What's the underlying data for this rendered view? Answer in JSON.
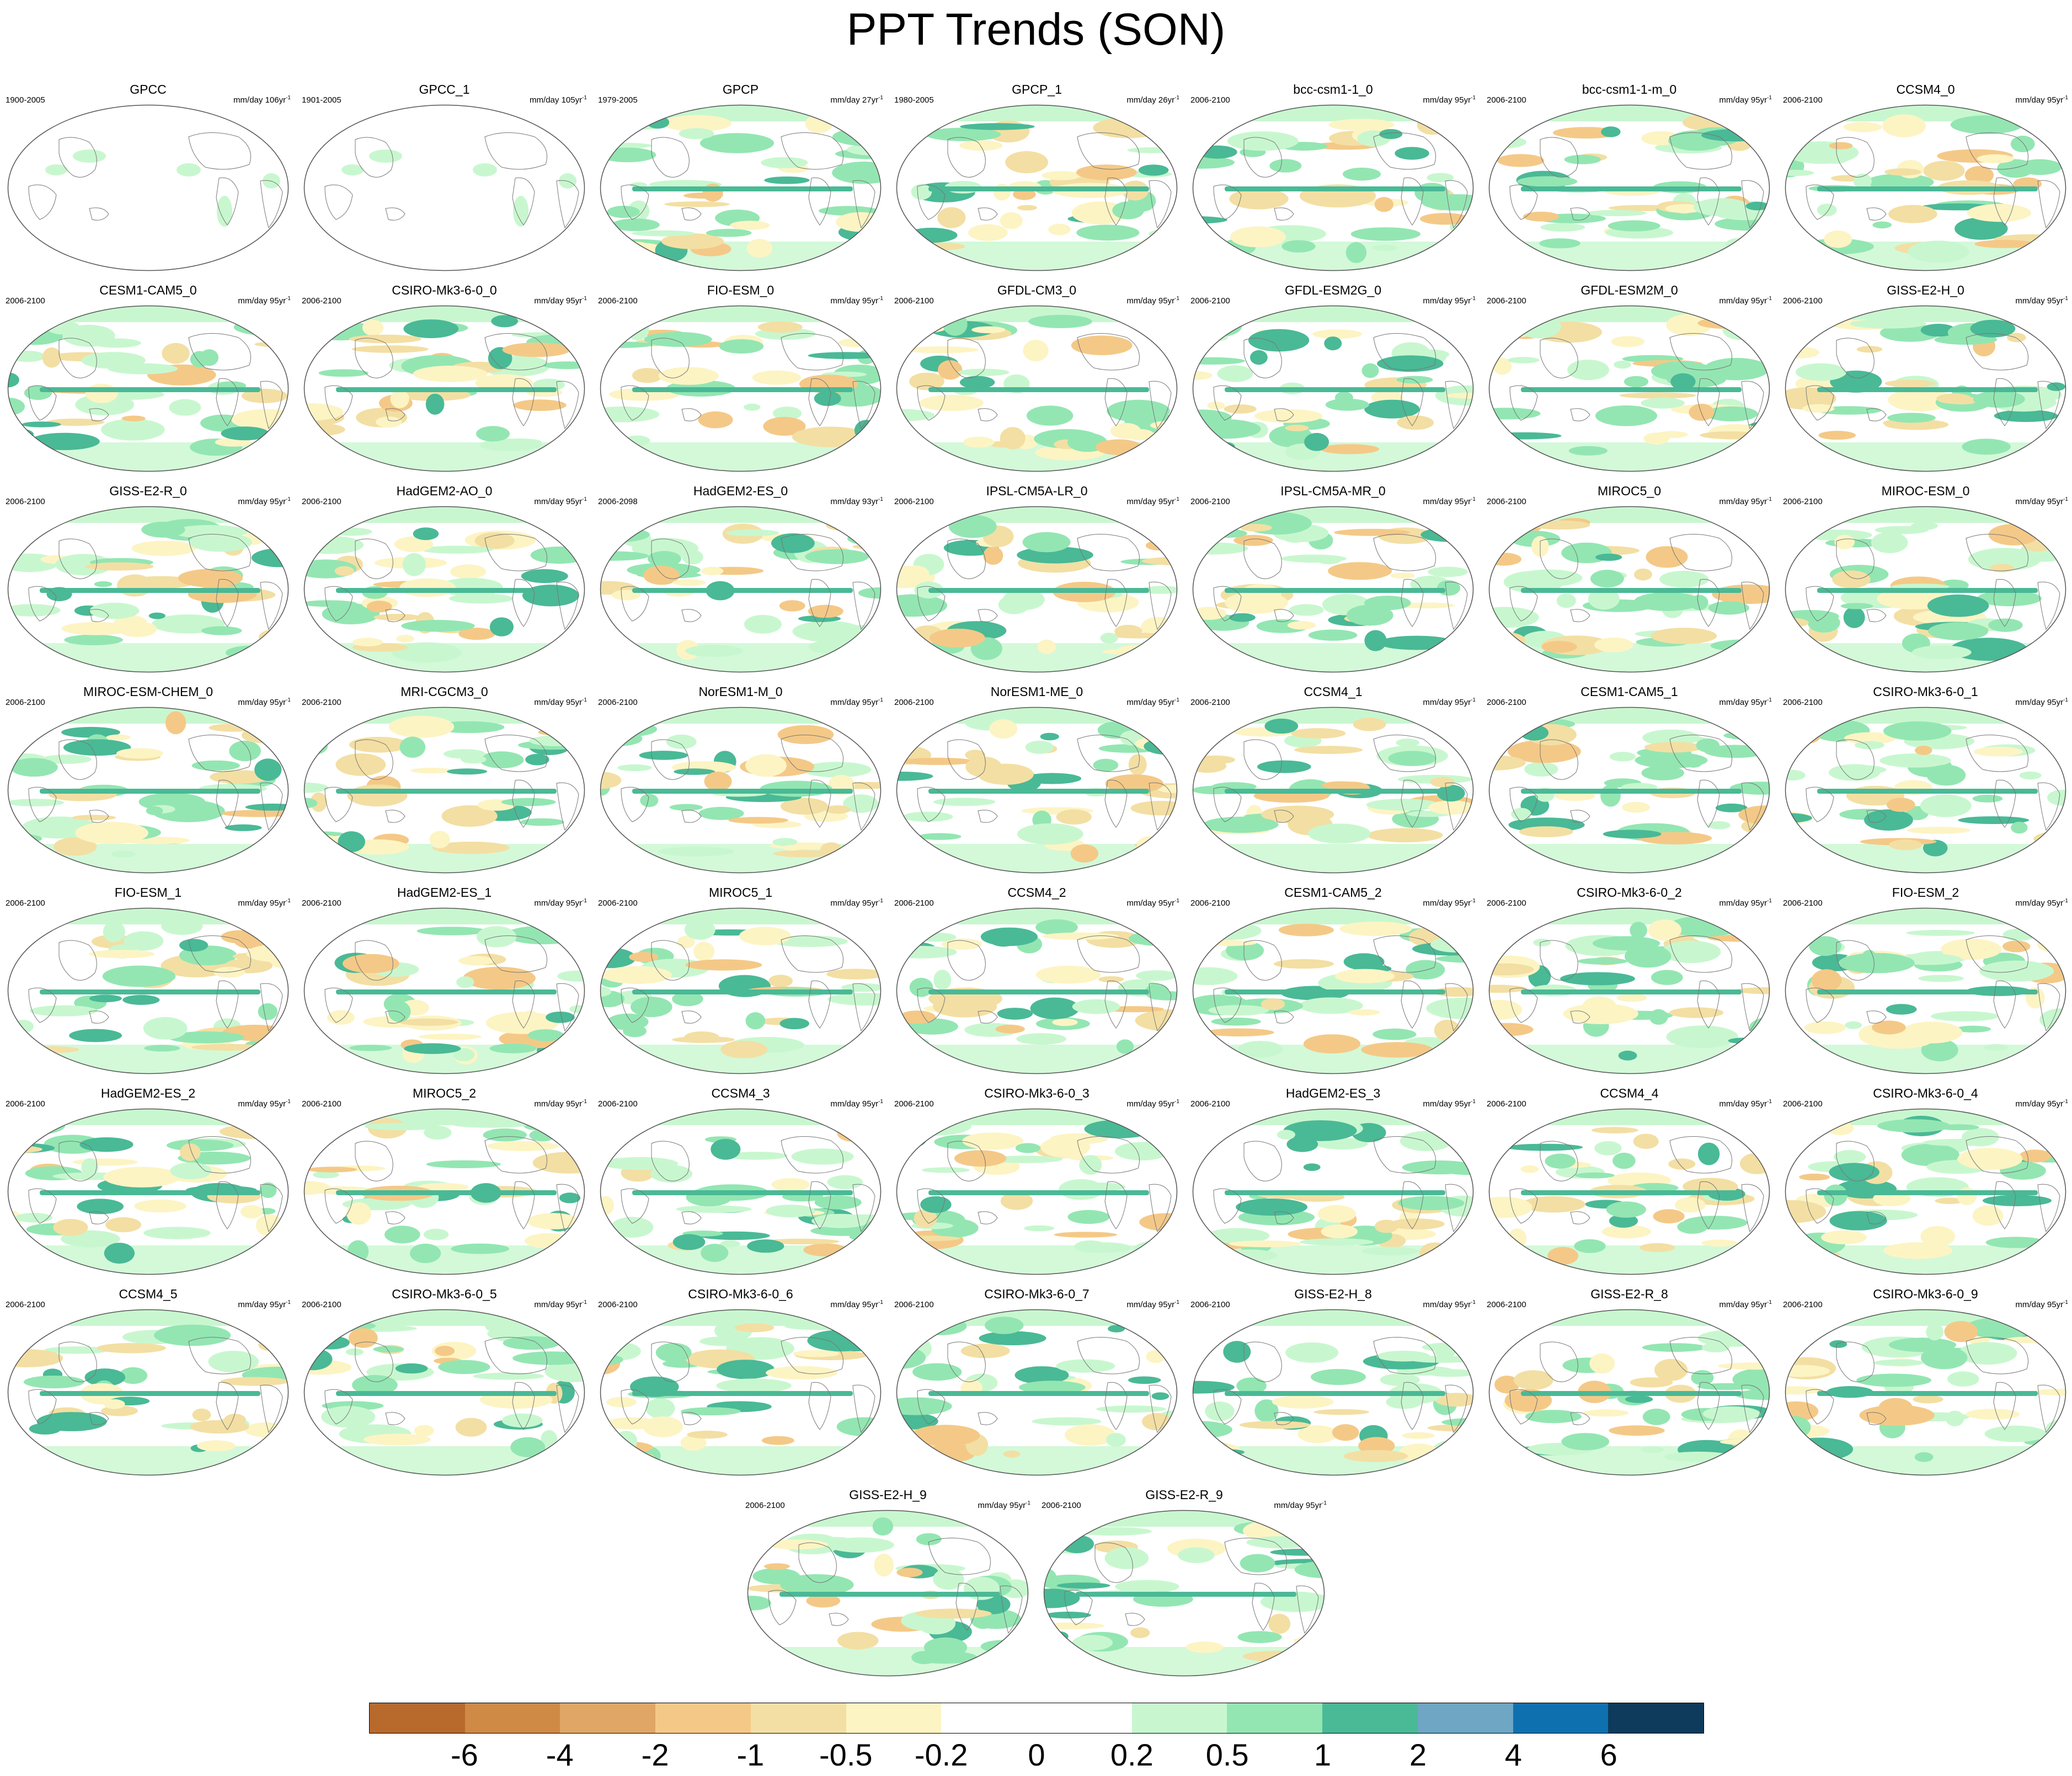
{
  "title": "PPT Trends (SON)",
  "units_prefix": "mm/day",
  "units_suffix": "yr",
  "units_exponent": "-1",
  "colorbar": {
    "colors": [
      "#b8692c",
      "#cf8a45",
      "#e0a665",
      "#f4c987",
      "#f3dfa3",
      "#fdf4c4",
      "#ffffff",
      "#ffffff",
      "#c8f7cf",
      "#93e6b2",
      "#4ab996",
      "#6ea6c4",
      "#0f70b0",
      "#0e3a5c"
    ],
    "labels": [
      "-6",
      "-4",
      "-2",
      "-1",
      "-0.5",
      "-0.2",
      "0",
      "0.2",
      "0.5",
      "1",
      "2",
      "4",
      "6"
    ]
  },
  "panels": [
    {
      "name": "GPCC",
      "period": "1900-2005",
      "span": "106"
    },
    {
      "name": "GPCC_1",
      "period": "1901-2005",
      "span": "105"
    },
    {
      "name": "GPCP",
      "period": "1979-2005",
      "span": "27"
    },
    {
      "name": "GPCP_1",
      "period": "1980-2005",
      "span": "26"
    },
    {
      "name": "bcc-csm1-1_0",
      "period": "2006-2100",
      "span": "95"
    },
    {
      "name": "bcc-csm1-1-m_0",
      "period": "2006-2100",
      "span": "95"
    },
    {
      "name": "CCSM4_0",
      "period": "2006-2100",
      "span": "95"
    },
    {
      "name": "CESM1-CAM5_0",
      "period": "2006-2100",
      "span": "95"
    },
    {
      "name": "CSIRO-Mk3-6-0_0",
      "period": "2006-2100",
      "span": "95"
    },
    {
      "name": "FIO-ESM_0",
      "period": "2006-2100",
      "span": "95"
    },
    {
      "name": "GFDL-CM3_0",
      "period": "2006-2100",
      "span": "95"
    },
    {
      "name": "GFDL-ESM2G_0",
      "period": "2006-2100",
      "span": "95"
    },
    {
      "name": "GFDL-ESM2M_0",
      "period": "2006-2100",
      "span": "95"
    },
    {
      "name": "GISS-E2-H_0",
      "period": "2006-2100",
      "span": "95"
    },
    {
      "name": "GISS-E2-R_0",
      "period": "2006-2100",
      "span": "95"
    },
    {
      "name": "HadGEM2-AO_0",
      "period": "2006-2100",
      "span": "95"
    },
    {
      "name": "HadGEM2-ES_0",
      "period": "2006-2098",
      "span": "93"
    },
    {
      "name": "IPSL-CM5A-LR_0",
      "period": "2006-2100",
      "span": "95"
    },
    {
      "name": "IPSL-CM5A-MR_0",
      "period": "2006-2100",
      "span": "95"
    },
    {
      "name": "MIROC5_0",
      "period": "2006-2100",
      "span": "95"
    },
    {
      "name": "MIROC-ESM_0",
      "period": "2006-2100",
      "span": "95"
    },
    {
      "name": "MIROC-ESM-CHEM_0",
      "period": "2006-2100",
      "span": "95"
    },
    {
      "name": "MRI-CGCM3_0",
      "period": "2006-2100",
      "span": "95"
    },
    {
      "name": "NorESM1-M_0",
      "period": "2006-2100",
      "span": "95"
    },
    {
      "name": "NorESM1-ME_0",
      "period": "2006-2100",
      "span": "95"
    },
    {
      "name": "CCSM4_1",
      "period": "2006-2100",
      "span": "95"
    },
    {
      "name": "CESM1-CAM5_1",
      "period": "2006-2100",
      "span": "95"
    },
    {
      "name": "CSIRO-Mk3-6-0_1",
      "period": "2006-2100",
      "span": "95"
    },
    {
      "name": "FIO-ESM_1",
      "period": "2006-2100",
      "span": "95"
    },
    {
      "name": "HadGEM2-ES_1",
      "period": "2006-2100",
      "span": "95"
    },
    {
      "name": "MIROC5_1",
      "period": "2006-2100",
      "span": "95"
    },
    {
      "name": "CCSM4_2",
      "period": "2006-2100",
      "span": "95"
    },
    {
      "name": "CESM1-CAM5_2",
      "period": "2006-2100",
      "span": "95"
    },
    {
      "name": "CSIRO-Mk3-6-0_2",
      "period": "2006-2100",
      "span": "95"
    },
    {
      "name": "FIO-ESM_2",
      "period": "2006-2100",
      "span": "95"
    },
    {
      "name": "HadGEM2-ES_2",
      "period": "2006-2100",
      "span": "95"
    },
    {
      "name": "MIROC5_2",
      "period": "2006-2100",
      "span": "95"
    },
    {
      "name": "CCSM4_3",
      "period": "2006-2100",
      "span": "95"
    },
    {
      "name": "CSIRO-Mk3-6-0_3",
      "period": "2006-2100",
      "span": "95"
    },
    {
      "name": "HadGEM2-ES_3",
      "period": "2006-2100",
      "span": "95"
    },
    {
      "name": "CCSM4_4",
      "period": "2006-2100",
      "span": "95"
    },
    {
      "name": "CSIRO-Mk3-6-0_4",
      "period": "2006-2100",
      "span": "95"
    },
    {
      "name": "CCSM4_5",
      "period": "2006-2100",
      "span": "95"
    },
    {
      "name": "CSIRO-Mk3-6-0_5",
      "period": "2006-2100",
      "span": "95"
    },
    {
      "name": "CSIRO-Mk3-6-0_6",
      "period": "2006-2100",
      "span": "95"
    },
    {
      "name": "CSIRO-Mk3-6-0_7",
      "period": "2006-2100",
      "span": "95"
    },
    {
      "name": "GISS-E2-H_8",
      "period": "2006-2100",
      "span": "95"
    },
    {
      "name": "GISS-E2-R_8",
      "period": "2006-2100",
      "span": "95"
    },
    {
      "name": "CSIRO-Mk3-6-0_9",
      "period": "2006-2100",
      "span": "95"
    },
    {
      "name": "GISS-E2-H_9",
      "period": "2006-2100",
      "span": "95"
    },
    {
      "name": "GISS-E2-R_9",
      "period": "2006-2100",
      "span": "95"
    }
  ]
}
